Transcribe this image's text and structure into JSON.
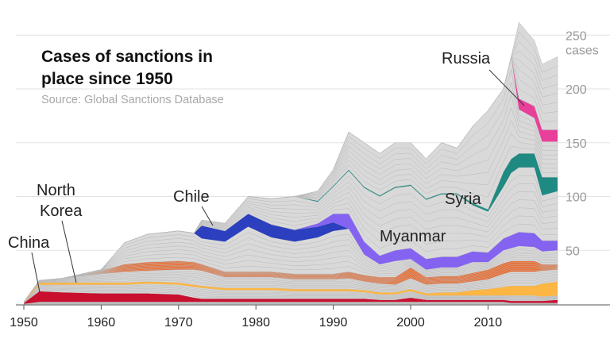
{
  "chart_data": {
    "type": "area",
    "stacked": true,
    "title": "Cases of sanctions in place since 1950",
    "subtitle": "Source: Global Sanctions Database",
    "y_unit": "cases",
    "ylim": [
      0,
      260
    ],
    "xlim": [
      1950,
      2019
    ],
    "yticks": [
      50,
      100,
      150,
      200,
      250
    ],
    "xticks": [
      1950,
      1960,
      1970,
      1980,
      1990,
      2000,
      2010
    ],
    "grid": true,
    "x": [
      1950,
      1952,
      1955,
      1960,
      1963,
      1966,
      1970,
      1972,
      1973,
      1976,
      1979,
      1982,
      1985,
      1988,
      1990,
      1992,
      1994,
      1996,
      1998,
      2000,
      2002,
      2004,
      2006,
      2008,
      2010,
      2012,
      2013,
      2014,
      2016,
      2017,
      2019
    ],
    "series": [
      {
        "color": "#d9d9d9",
        "values": [
          0,
          2,
          2,
          2,
          2,
          2,
          2,
          2,
          2,
          2,
          2,
          2,
          2,
          2,
          2,
          2,
          2,
          2,
          2,
          2,
          2,
          2,
          2,
          2,
          2,
          2,
          1,
          1,
          1,
          1,
          1
        ]
      },
      {
        "name": "China",
        "color": "#c8102e",
        "values": [
          1,
          10,
          9,
          8,
          8,
          8,
          7,
          4,
          3,
          3,
          3,
          3,
          3,
          3,
          3,
          3,
          3,
          2,
          2,
          4,
          2,
          2,
          2,
          2,
          2,
          2,
          2,
          2,
          2,
          2,
          3
        ]
      },
      {
        "color": "#d9d9d9",
        "values": [
          0,
          6,
          7,
          8,
          8,
          9,
          9,
          10,
          10,
          8,
          8,
          8,
          7,
          7,
          7,
          7,
          6,
          5,
          5,
          6,
          4,
          4,
          4,
          4,
          4,
          4,
          5,
          5,
          5,
          4,
          4
        ]
      },
      {
        "name": "North Korea",
        "color": "#fdb643",
        "values": [
          0.5,
          2,
          2,
          2,
          2,
          2,
          2,
          2,
          2,
          2,
          2,
          2,
          2,
          2,
          2,
          2,
          2,
          2,
          2,
          2,
          2,
          3,
          3,
          5,
          6,
          8,
          9,
          9,
          9,
          12,
          13
        ]
      },
      {
        "color": "#d9d9d9",
        "values": [
          0.5,
          2,
          4,
          8,
          10,
          10,
          12,
          14,
          14,
          10,
          10,
          10,
          9,
          9,
          9,
          10,
          8,
          8,
          7,
          10,
          8,
          8,
          8,
          8,
          9,
          12,
          13,
          13,
          13,
          12,
          11
        ]
      },
      {
        "color": "#f26522",
        "values": [
          0,
          0,
          0,
          3,
          7,
          8,
          8,
          7,
          6,
          5,
          5,
          5,
          5,
          5,
          5,
          6,
          6,
          6,
          7,
          10,
          7,
          7,
          7,
          8,
          9,
          10,
          10,
          10,
          10,
          6,
          5
        ]
      },
      {
        "color": "#d9d9d9",
        "values": [
          0,
          0,
          0,
          1,
          20,
          26,
          28,
          27,
          24,
          28,
          42,
          32,
          30,
          34,
          40,
          40,
          19,
          12,
          15,
          8,
          7,
          8,
          8,
          10,
          7,
          12,
          12,
          14,
          13,
          12,
          13
        ]
      },
      {
        "name": "Chile",
        "color": "#2c3fbf",
        "values": [
          0,
          0,
          0,
          0,
          0,
          0,
          0,
          0,
          12,
          10,
          12,
          12,
          11,
          10,
          8,
          0,
          0,
          0,
          0,
          0,
          0,
          0,
          0,
          0,
          0,
          0,
          0,
          0,
          0,
          0,
          0
        ]
      },
      {
        "name": "Myanmar",
        "color": "#8463f0",
        "values": [
          0,
          0,
          0,
          0,
          0,
          0,
          0,
          0,
          0,
          0,
          0,
          0,
          0,
          3,
          8,
          14,
          12,
          8,
          10,
          10,
          10,
          10,
          10,
          10,
          9,
          11,
          12,
          13,
          13,
          10,
          9
        ]
      },
      {
        "color": "#d9d9d9",
        "values": [
          0,
          0,
          0,
          0,
          0,
          0,
          0,
          0,
          5,
          7,
          16,
          24,
          31,
          20,
          25,
          40,
          50,
          55,
          58,
          58,
          55,
          58,
          58,
          43,
          38,
          48,
          58,
          60,
          61,
          42,
          46
        ]
      },
      {
        "name": "Syria",
        "color": "#1f8a82",
        "values": [
          0,
          0,
          0,
          0,
          0,
          0,
          0,
          0,
          0,
          0,
          0,
          0,
          0,
          1,
          1,
          1,
          1,
          1,
          1,
          1,
          1,
          1,
          1,
          2,
          2,
          14,
          13,
          13,
          13,
          17,
          13
        ]
      },
      {
        "color": "#d9d9d9",
        "values": [
          0,
          0,
          0,
          0,
          0,
          0,
          0,
          0,
          0,
          0,
          0,
          0,
          0,
          9,
          15,
          35,
          41,
          39,
          41,
          39,
          37,
          47,
          42,
          71,
          92,
          77,
          95,
          41,
          33,
          33,
          33
        ]
      },
      {
        "name": "Russia",
        "color": "#e8409a",
        "values": [
          0,
          0,
          0,
          0,
          0,
          0,
          0,
          0,
          0,
          0,
          0,
          0,
          0,
          0,
          0,
          0,
          0,
          0,
          0,
          0,
          0,
          0,
          0,
          0,
          0,
          0,
          0,
          10,
          11,
          11,
          11
        ]
      },
      {
        "color": "#d9d9d9",
        "values": [
          0,
          0,
          0,
          0,
          0,
          0,
          0,
          0,
          0,
          0,
          0,
          0,
          0,
          0,
          0,
          0,
          0,
          0,
          0,
          0,
          0,
          0,
          0,
          0,
          0,
          0,
          0,
          71,
          61,
          61,
          68
        ]
      }
    ],
    "annotations": [
      "China",
      "North",
      "Korea",
      "Chile",
      "Myanmar",
      "Syria",
      "Russia"
    ]
  }
}
